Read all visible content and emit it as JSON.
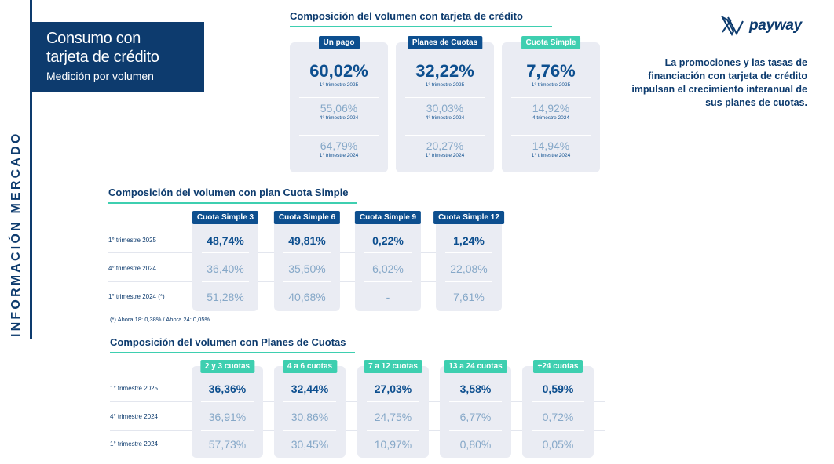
{
  "side_label": "INFORMACIÓN MERCADO",
  "title": {
    "line1": "Consumo con",
    "line2": "tarjeta de crédito",
    "subtitle": "Medición por volumen"
  },
  "logo": {
    "text": "payway"
  },
  "headline": "La promociones y las tasas de financiación con tarjeta de crédito impulsan el crecimiento interanual de sus planes de cuotas.",
  "section1": {
    "title": "Composición del volumen con tarjeta de crédito",
    "cards": [
      {
        "badge": "Un pago",
        "values": [
          {
            "value": "60,02%",
            "caption": "1° trimestre 2025"
          },
          {
            "value": "55,06%",
            "caption": "4° trimestre 2024"
          },
          {
            "value": "64,79%",
            "caption": "1° trimestre 2024"
          }
        ]
      },
      {
        "badge": "Planes de Cuotas",
        "values": [
          {
            "value": "32,22%",
            "caption": "1° trimestre 2025"
          },
          {
            "value": "30,03%",
            "caption": "4° trimestre 2024"
          },
          {
            "value": "20,27%",
            "caption": "1° trimestre 2024"
          }
        ]
      },
      {
        "badge": "Cuota Simple",
        "values": [
          {
            "value": "7,76%",
            "caption": "1° trimestre 2025"
          },
          {
            "value": "14,92%",
            "caption": "4 trimestre 2024"
          },
          {
            "value": "14,94%",
            "caption": "1° trimestre 2024"
          }
        ]
      }
    ]
  },
  "section2": {
    "title": "Composición del volumen con plan Cuota Simple",
    "rows": [
      "1° trimestre 2025",
      "4° trimestre 2024",
      "1° trimestre 2024 (*)"
    ],
    "columns": [
      {
        "badge": "Cuota Simple 3",
        "values": [
          "48,74%",
          "36,40%",
          "51,28%"
        ]
      },
      {
        "badge": "Cuota Simple 6",
        "values": [
          "49,81%",
          "35,50%",
          "40,68%"
        ]
      },
      {
        "badge": "Cuota Simple 9",
        "values": [
          "0,22%",
          "6,02%",
          "-"
        ]
      },
      {
        "badge": "Cuota Simple 12",
        "values": [
          "1,24%",
          "22,08%",
          "7,61%"
        ]
      }
    ],
    "note": "(*) Ahora 18: 0,38% / Ahora 24: 0,05%"
  },
  "section3": {
    "title": "Composición del volumen con Planes de Cuotas",
    "rows": [
      "1° trimestre 2025",
      "4° trimestre 2024",
      "1° trimestre 2024"
    ],
    "columns": [
      {
        "badge": "2 y 3 cuotas",
        "values": [
          "36,36%",
          "36,91%",
          "57,73%"
        ]
      },
      {
        "badge": "4 a 6 cuotas",
        "values": [
          "32,44%",
          "30,86%",
          "30,45%"
        ]
      },
      {
        "badge": "7 a 12 cuotas",
        "values": [
          "27,03%",
          "24,75%",
          "10,97%"
        ]
      },
      {
        "badge": "13 a 24 cuotas",
        "values": [
          "3,58%",
          "6,77%",
          "0,80%"
        ]
      },
      {
        "badge": "+24 cuotas",
        "values": [
          "0,59%",
          "0,72%",
          "0,05%"
        ]
      }
    ]
  },
  "colors": {
    "navy": "#0d3b6e",
    "blue": "#0d4f8f",
    "teal": "#3ecfb0",
    "muted": "#86a8c8",
    "card": "#eaecf3"
  }
}
